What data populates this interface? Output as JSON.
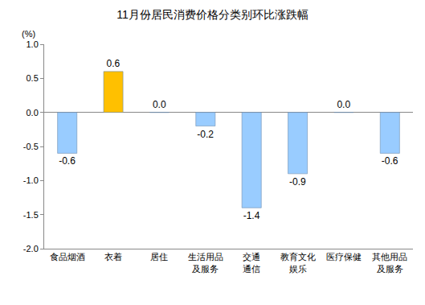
{
  "chart_data": {
    "type": "bar",
    "title": "11月份居民消费价格分类别环比涨跌幅",
    "ylabel": "(%)",
    "categories": [
      "食品烟酒",
      "衣着",
      "居住",
      "生活用品\n及服务",
      "交通\n通信",
      "教育文化\n娱乐",
      "医疗保健",
      "其他用品\n及服务"
    ],
    "values": [
      -0.6,
      0.6,
      0.0,
      -0.2,
      -1.4,
      -0.9,
      0.0,
      -0.6
    ],
    "value_labels": [
      "-0.6",
      "0.6",
      "0.0",
      "-0.2",
      "-1.4",
      "-0.9",
      "0.0",
      "-0.6"
    ],
    "colors": [
      "#99ccff",
      "#ffc000",
      "#99ccff",
      "#99ccff",
      "#99ccff",
      "#99ccff",
      "#99ccff",
      "#99ccff"
    ],
    "ylim": [
      -2.0,
      1.0
    ],
    "yticks": [
      {
        "value": 1.0,
        "label": "1.0"
      },
      {
        "value": 0.5,
        "label": "0.5"
      },
      {
        "value": 0.0,
        "label": "0.0"
      },
      {
        "value": -0.5,
        "label": "-0.5"
      },
      {
        "value": -1.0,
        "label": "-1.0"
      },
      {
        "value": -1.5,
        "label": "-1.5"
      },
      {
        "value": -2.0,
        "label": "-2.0"
      }
    ],
    "grid": false,
    "data_labels": true
  }
}
